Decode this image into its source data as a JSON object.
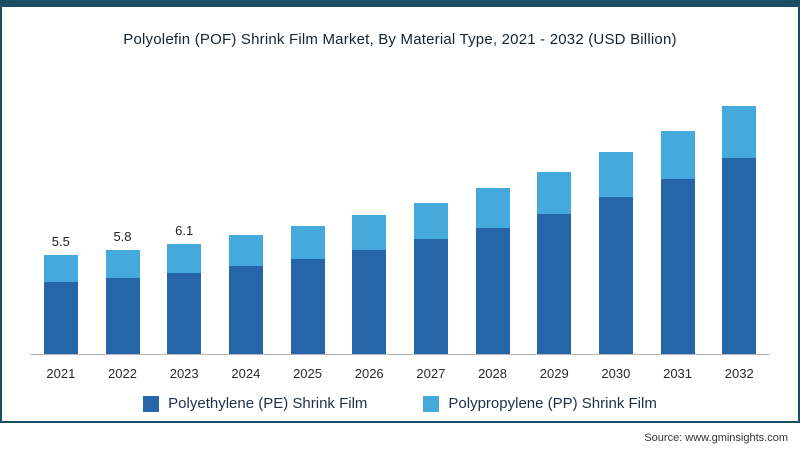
{
  "frame": {
    "border_color": "#1a4f63",
    "background": "#ffffff"
  },
  "chart_data": {
    "type": "bar",
    "stacked": true,
    "title": "Polyolefin (POF) Shrink Film Market, By Material Type, 2021 - 2032 (USD Billion)",
    "categories": [
      "2021",
      "2022",
      "2023",
      "2024",
      "2025",
      "2026",
      "2027",
      "2028",
      "2029",
      "2030",
      "2031",
      "2032"
    ],
    "series": [
      {
        "name": "Polyethylene (PE) Shrink Film",
        "color": "#2565a8",
        "values": [
          4.0,
          4.2,
          4.5,
          4.9,
          5.3,
          5.8,
          6.4,
          7.0,
          7.8,
          8.7,
          9.7,
          10.9
        ]
      },
      {
        "name": "Polypropylene (PP) Shrink Film",
        "color": "#45a9dc",
        "values": [
          1.5,
          1.6,
          1.6,
          1.7,
          1.8,
          1.9,
          2.0,
          2.2,
          2.3,
          2.5,
          2.7,
          2.9
        ]
      }
    ],
    "totals": [
      5.5,
      5.8,
      6.1,
      6.6,
      7.1,
      7.7,
      8.4,
      9.2,
      10.1,
      11.2,
      12.4,
      13.8
    ],
    "data_labels": [
      "5.5",
      "5.8",
      "6.1",
      "",
      "",
      "",
      "",
      "",
      "",
      "",
      "",
      ""
    ],
    "xlabel": "",
    "ylabel": "",
    "ylim": [
      0,
      15
    ],
    "grid": false,
    "legend_position": "bottom"
  },
  "source": {
    "text": "Source: www.gminsights.com"
  }
}
